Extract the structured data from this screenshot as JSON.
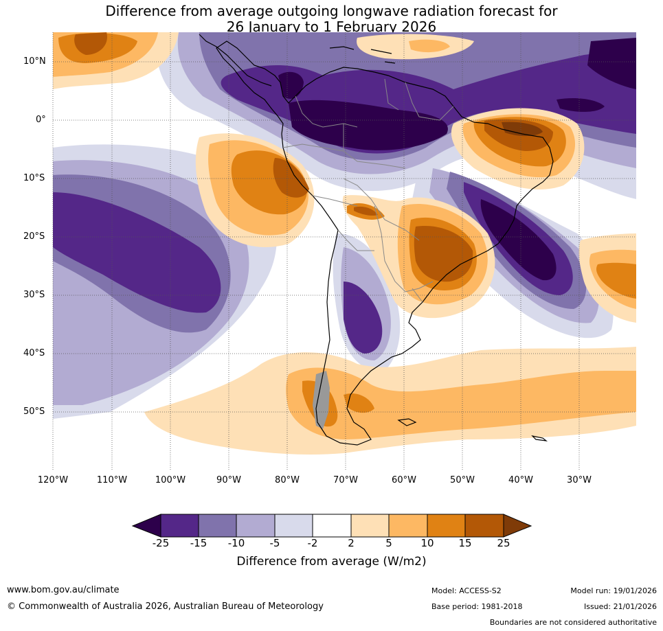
{
  "title": {
    "line1": "Difference from average outgoing longwave radiation forecast for",
    "line2": "26 January to 1 February 2026"
  },
  "map": {
    "lat_labels": [
      "10°N",
      "0°",
      "10°S",
      "20°S",
      "30°S",
      "40°S",
      "50°S"
    ],
    "lon_labels": [
      "120°W",
      "110°W",
      "100°W",
      "90°W",
      "80°W",
      "70°W",
      "60°W",
      "50°W",
      "40°W",
      "30°W"
    ]
  },
  "colorbar": {
    "ticks": [
      "-25",
      "-15",
      "-10",
      "-5",
      "-2",
      "2",
      "5",
      "10",
      "15",
      "25"
    ],
    "colors": [
      "#2d004b",
      "#542788",
      "#8073ac",
      "#b2abd2",
      "#d8daeb",
      "#ffffff",
      "#fee0b6",
      "#fdb863",
      "#e08214",
      "#b35806",
      "#7f3b08"
    ],
    "label": "Difference from average (W/m2)"
  },
  "footer": {
    "website": "www.bom.gov.au/climate",
    "copyright": "© Commonwealth of Australia 2026, Australian Bureau of Meteorology",
    "model": "Model: ACCESS-S2",
    "base_period": "Base period: 1981-2018",
    "model_run": "Model run: 19/01/2026",
    "issued": "Issued: 21/01/2026",
    "disclaimer": "Boundaries are not considered authoritative"
  }
}
